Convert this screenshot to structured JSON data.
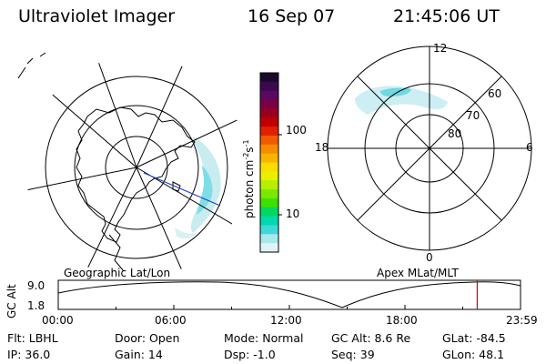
{
  "header": {
    "instrument": "Ultraviolet Imager",
    "date": "16 Sep 07",
    "time": "21:45:06 UT"
  },
  "colorbar": {
    "unit": "photon cm",
    "unit_exp1": "-2",
    "unit_mid": "s",
    "unit_exp2": "-1",
    "ticks": [
      {
        "value": 100,
        "label": "100"
      },
      {
        "value": 10,
        "label": "10"
      }
    ],
    "colors": [
      "#1a0a2a",
      "#3b0850",
      "#5a0a5e",
      "#7a0046",
      "#9a001e",
      "#c00000",
      "#e02000",
      "#f25a00",
      "#f58c00",
      "#f8b400",
      "#fadc00",
      "#e8f000",
      "#b4f000",
      "#7ce800",
      "#3ee000",
      "#00d860",
      "#00d8b0",
      "#40d8d8",
      "#a8e8ec",
      "#dff4f6"
    ]
  },
  "left_map": {
    "label": "Geographic Lat/Lon"
  },
  "right_map": {
    "label": "Apex MLat/MLT",
    "mlt_labels": [
      "12",
      "6",
      "0",
      "18"
    ],
    "lat_labels": [
      "60",
      "70",
      "80"
    ]
  },
  "altitude_plot": {
    "ylabel": "GC Alt",
    "yticks": [
      "9.0",
      "1.8"
    ],
    "xticks": [
      "00:00",
      "06:00",
      "12:00",
      "18:00",
      "23:59"
    ],
    "marker_time": "21:45",
    "marker_color": "#e00000"
  },
  "footer": {
    "col1": [
      "Flt: LBHL",
      "IP: 36.0"
    ],
    "col2": [
      "Door: Open",
      "Gain: 14"
    ],
    "col3": [
      "Mode: Normal",
      "Dsp:   -1.0"
    ],
    "col4": [
      "GC Alt: 8.6 Re",
      "Seq: 39"
    ],
    "col5": [
      "GLat: -84.5",
      "GLon:  48.1"
    ]
  }
}
